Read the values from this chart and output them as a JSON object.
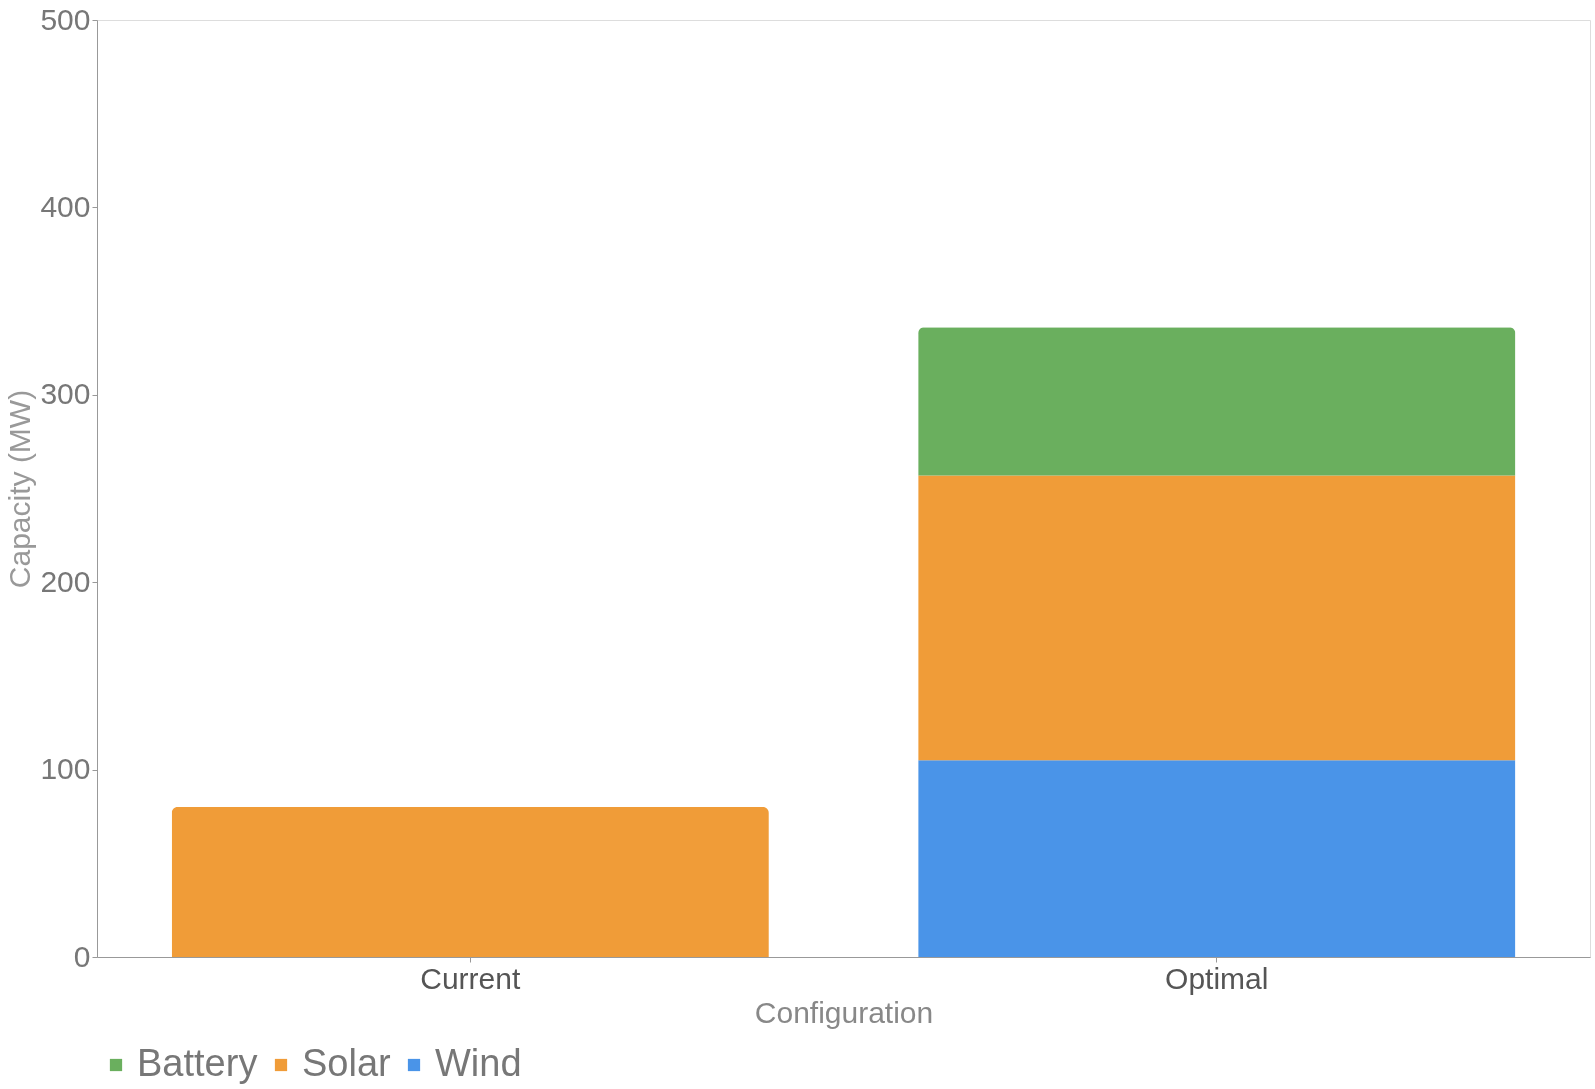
{
  "chart_data": {
    "type": "bar",
    "stacked": true,
    "xlabel": "Configuration",
    "ylabel": "Capacity (MW)",
    "categories": [
      "Current",
      "Optimal"
    ],
    "series": [
      {
        "name": "Wind",
        "color": "#4a94e8",
        "values": [
          null,
          105
        ]
      },
      {
        "name": "Solar",
        "color": "#f09c38",
        "values": [
          80,
          152
        ]
      },
      {
        "name": "Battery",
        "color": "#6aaf5e",
        "values": [
          null,
          79
        ]
      }
    ],
    "ylim": [
      0,
      500
    ],
    "yticks": [
      0,
      100,
      200,
      300,
      400,
      500
    ],
    "grid": false,
    "legend": "bottom"
  }
}
